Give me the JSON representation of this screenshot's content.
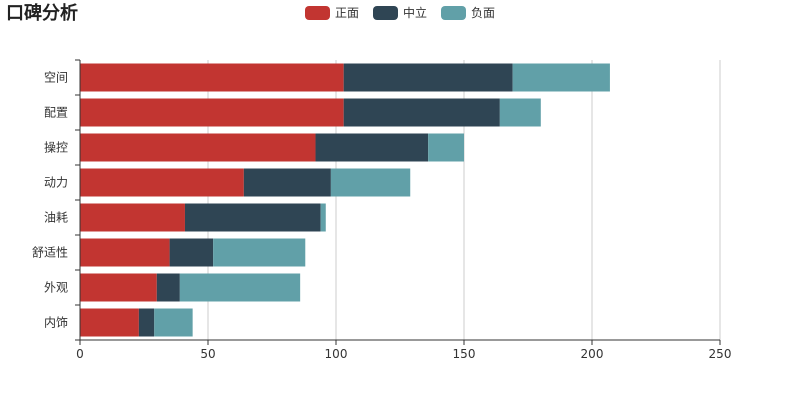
{
  "chart_data": {
    "type": "bar",
    "orientation": "horizontal",
    "stacked": true,
    "title": "口碑分析",
    "categories": [
      "空间",
      "配置",
      "操控",
      "动力",
      "油耗",
      "舒适性",
      "外观",
      "内饰"
    ],
    "series": [
      {
        "name": "正面",
        "color": "#c23531",
        "values": [
          103,
          103,
          92,
          64,
          41,
          35,
          30,
          23
        ]
      },
      {
        "name": "中立",
        "color": "#2f4554",
        "values": [
          66,
          61,
          44,
          34,
          53,
          17,
          9,
          6
        ]
      },
      {
        "name": "负面",
        "color": "#61a0a8",
        "values": [
          38,
          16,
          14,
          31,
          2,
          36,
          47,
          15
        ]
      }
    ],
    "xlim": [
      0,
      250
    ],
    "xticks": [
      0,
      50,
      100,
      150,
      200,
      250
    ],
    "grid": true,
    "legend_position": "top-center",
    "xlabel": "",
    "ylabel": ""
  }
}
